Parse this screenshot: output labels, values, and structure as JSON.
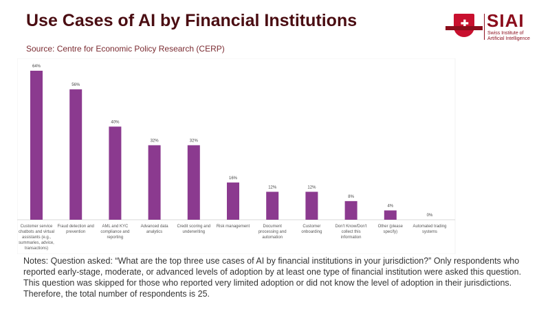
{
  "header": {
    "title": "Use Cases of AI by Financial Institutions",
    "source": "Source: Centre for Economic Policy Research (CERP)"
  },
  "logo": {
    "name": "SIAI",
    "subtitle_line1": "Swiss Institute of",
    "subtitle_line2": "Artificial Intelligence"
  },
  "chart_data": {
    "type": "bar",
    "title": "",
    "xlabel": "",
    "ylabel": "",
    "ylim": [
      0,
      64
    ],
    "color": "#8b3a8f",
    "categories": [
      [
        "Customer service",
        "chatbots and virtual",
        "assistants (e.g.,",
        "summaries, advice,",
        "transactions)"
      ],
      [
        "Fraud detection and",
        "prevention"
      ],
      [
        "AML and KYC",
        "compliance and",
        "reporting"
      ],
      [
        "Advanced data",
        "analytics"
      ],
      [
        "Credit scoring and",
        "underwriting"
      ],
      [
        "Risk management"
      ],
      [
        "Document",
        "processing and",
        "automation"
      ],
      [
        "Customer",
        "onboarding"
      ],
      [
        "Don't Know/Don't",
        "collect this",
        "information"
      ],
      [
        "Other (please",
        "specify)"
      ],
      [
        "Automated trading",
        "systems"
      ]
    ],
    "values": [
      64,
      56,
      40,
      32,
      32,
      16,
      12,
      12,
      8,
      4,
      0
    ],
    "labels": [
      "64%",
      "56%",
      "40%",
      "32%",
      "32%",
      "16%",
      "12%",
      "12%",
      "8%",
      "4%",
      "0%"
    ]
  },
  "notes": "Notes: Question asked: “What are the top three use cases of AI by financial institutions in your jurisdiction?” Only respondents who reported early-stage, moderate, or advanced levels of adoption by at least one type of financial institution were asked this question. This question was skipped for those who reported very limited adoption or did not know the level of adoption in their jurisdictions. Therefore, the total number of respondents is 25."
}
